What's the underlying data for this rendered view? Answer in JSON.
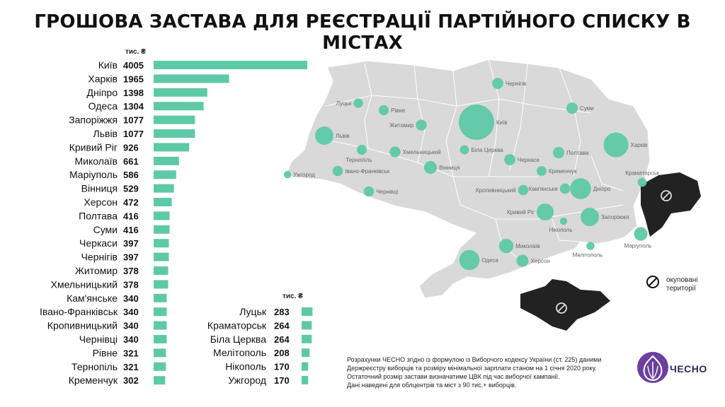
{
  "title": "ГРОШОВА ЗАСТАВА ДЛЯ РЕЄСТРАЦІЇ ПАРТІЙНОГО СПИСКУ В МІСТАХ",
  "chart_data": {
    "type": "bar",
    "orientation": "horizontal",
    "unit_label": "тис. ₴",
    "panels": [
      {
        "categories": [
          "Київ",
          "Харків",
          "Дніпро",
          "Одеса",
          "Запоріжжя",
          "Львів",
          "Кривий Ріг",
          "Миколаїв",
          "Маріуполь",
          "Вінниця",
          "Херсон",
          "Полтава",
          "Суми",
          "Черкаси",
          "Чернігів",
          "Житомир",
          "Хмельницький",
          "Кам'янське",
          "Івано-Франківськ",
          "Кропивницький",
          "Чернівці",
          "Рівне",
          "Тернопіль",
          "Кременчук"
        ],
        "values": [
          4005,
          1965,
          1398,
          1304,
          1077,
          1077,
          926,
          661,
          586,
          529,
          472,
          416,
          416,
          397,
          397,
          378,
          378,
          340,
          340,
          340,
          340,
          321,
          321,
          302
        ]
      },
      {
        "categories": [
          "Луцьк",
          "Краматорськ",
          "Біла Церква",
          "Мелітополь",
          "Нікополь",
          "Ужгород"
        ],
        "values": [
          283,
          264,
          264,
          208,
          170,
          170
        ]
      }
    ],
    "xlim": [
      0,
      4005
    ],
    "bar_color": "#5ec9a7",
    "map_color": "#d9d9d9",
    "occupied_color": "#222222"
  },
  "map": {
    "cities": [
      {
        "name": "Київ",
        "value": 4005
      },
      {
        "name": "Харків",
        "value": 1965
      },
      {
        "name": "Дніпро",
        "value": 1398
      },
      {
        "name": "Одеса",
        "value": 1304
      },
      {
        "name": "Запоріжжя",
        "value": 1077
      },
      {
        "name": "Львів",
        "value": 1077
      },
      {
        "name": "Кривий Ріг",
        "value": 926
      },
      {
        "name": "Миколаїв",
        "value": 661
      },
      {
        "name": "Маріуполь",
        "value": 586
      },
      {
        "name": "Вінниця",
        "value": 529
      },
      {
        "name": "Херсон",
        "value": 472
      },
      {
        "name": "Полтава",
        "value": 416
      },
      {
        "name": "Суми",
        "value": 416
      },
      {
        "name": "Черкаси",
        "value": 397
      },
      {
        "name": "Чернігів",
        "value": 397
      },
      {
        "name": "Житомир",
        "value": 378
      },
      {
        "name": "Хмельницький",
        "value": 378
      },
      {
        "name": "Кам'янське",
        "value": 340
      },
      {
        "name": "Івано-Франківськ",
        "value": 340
      },
      {
        "name": "Кропивницький",
        "value": 340
      },
      {
        "name": "Чернівці",
        "value": 340
      },
      {
        "name": "Рівне",
        "value": 321
      },
      {
        "name": "Тернопіль",
        "value": 321
      },
      {
        "name": "Кременчук",
        "value": 302
      },
      {
        "name": "Луцьк",
        "value": 283
      },
      {
        "name": "Краматорськ",
        "value": 264
      },
      {
        "name": "Біла Церква",
        "value": 264
      },
      {
        "name": "Мелітополь",
        "value": 208
      },
      {
        "name": "Нікополь",
        "value": 170
      },
      {
        "name": "Ужгород",
        "value": 170
      }
    ]
  },
  "legend": {
    "occupied_line1": "окуповані",
    "occupied_line2": "території",
    "icon": "no-entry-icon"
  },
  "footnote": [
    "Розрахунки ЧЕСНО згідно із формулою із Виборчого кодексу України (ст. 225) даними",
    "Держреєстру виборців та розміру мінімальної зарплати станом на 1 січня 2020 року.",
    "Остаточний розмір застави визначатиме ЦВК під час виборчої кампанії.",
    "Дані наведені для облцентрів та міст з 90 тис.+ виборців."
  ],
  "brand": {
    "name": "ЧЕСНО",
    "color": "#6b3fa0",
    "icon": "garlic-logo-icon"
  }
}
